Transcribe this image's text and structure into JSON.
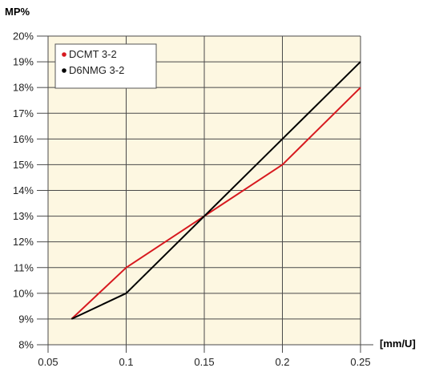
{
  "chart_data": {
    "type": "line",
    "title": "",
    "ylabel": "MP%",
    "xlabel": "[mm/U]",
    "x": [
      0.065,
      0.1,
      0.15,
      0.2,
      0.25
    ],
    "xlim": [
      0.05,
      0.25
    ],
    "ylim": [
      8,
      20
    ],
    "xticks": [
      0.05,
      0.1,
      0.15,
      0.2,
      0.25
    ],
    "xtick_labels": [
      "0.05",
      "0.1",
      "0.15",
      "0.2",
      "0.25"
    ],
    "yticks": [
      8,
      9,
      10,
      11,
      12,
      13,
      14,
      15,
      16,
      17,
      18,
      19,
      20
    ],
    "ytick_labels": [
      "8%",
      "9%",
      "10%",
      "11%",
      "12%",
      "13%",
      "14%",
      "15%",
      "16%",
      "17%",
      "18%",
      "19%",
      "20%"
    ],
    "grid": true,
    "legend_position": "top-left",
    "background_color": "#fdf7e1",
    "series": [
      {
        "name": "DCMT 3-2",
        "color": "#d7191f",
        "values": [
          9,
          11,
          13,
          15,
          18
        ]
      },
      {
        "name": "D6NMG 3-2",
        "color": "#000000",
        "values": [
          9,
          10,
          13,
          16,
          19
        ]
      }
    ]
  }
}
